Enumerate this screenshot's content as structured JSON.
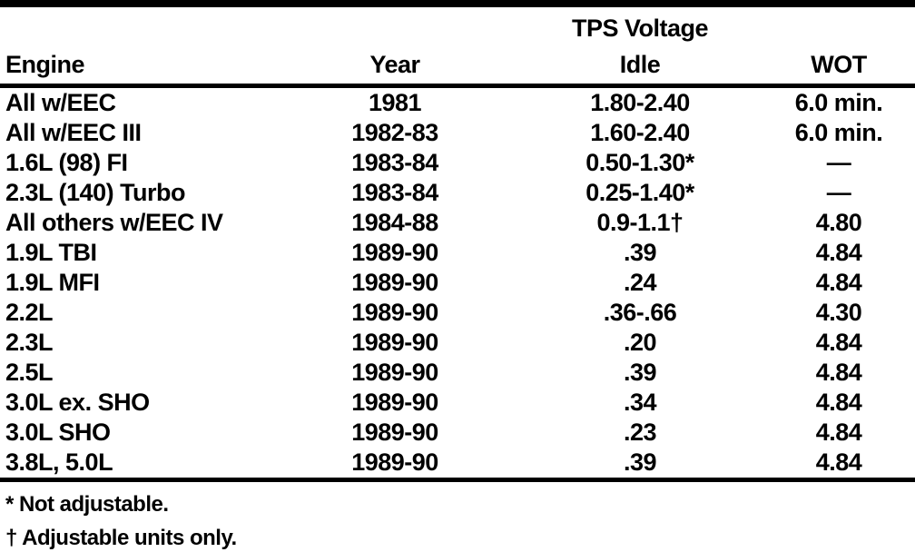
{
  "table": {
    "header": {
      "group_label": "TPS Voltage",
      "columns": [
        "Engine",
        "Year",
        "Idle",
        "WOT"
      ]
    },
    "rows": [
      {
        "engine": "All w/EEC",
        "year": "1981",
        "idle": "1.80-2.40",
        "wot": "6.0 min."
      },
      {
        "engine": "All w/EEC III",
        "year": "1982-83",
        "idle": "1.60-2.40",
        "wot": "6.0 min."
      },
      {
        "engine": "1.6L (98) FI",
        "year": "1983-84",
        "idle": "0.50-1.30*",
        "wot": "—"
      },
      {
        "engine": "2.3L (140) Turbo",
        "year": "1983-84",
        "idle": "0.25-1.40*",
        "wot": "—"
      },
      {
        "engine": "All others w/EEC IV",
        "year": "1984-88",
        "idle": "0.9-1.1†",
        "wot": "4.80"
      },
      {
        "engine": "1.9L TBI",
        "year": "1989-90",
        "idle": ".39",
        "wot": "4.84"
      },
      {
        "engine": "1.9L MFI",
        "year": "1989-90",
        "idle": ".24",
        "wot": "4.84"
      },
      {
        "engine": "2.2L",
        "year": "1989-90",
        "idle": ".36-.66",
        "wot": "4.30"
      },
      {
        "engine": "2.3L",
        "year": "1989-90",
        "idle": ".20",
        "wot": "4.84"
      },
      {
        "engine": "2.5L",
        "year": "1989-90",
        "idle": ".39",
        "wot": "4.84"
      },
      {
        "engine": "3.0L ex. SHO",
        "year": "1989-90",
        "idle": ".34",
        "wot": "4.84"
      },
      {
        "engine": "3.0L SHO",
        "year": "1989-90",
        "idle": ".23",
        "wot": "4.84"
      },
      {
        "engine": "3.8L, 5.0L",
        "year": "1989-90",
        "idle": ".39",
        "wot": "4.84"
      }
    ],
    "footnotes": [
      "* Not adjustable.",
      "† Adjustable units only."
    ]
  },
  "colors": {
    "text": "#000000",
    "background": "#ffffff",
    "rule": "#000000"
  }
}
